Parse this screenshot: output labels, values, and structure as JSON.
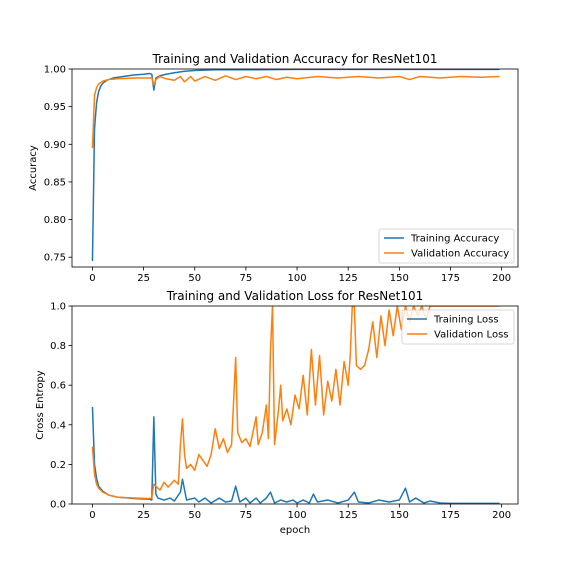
{
  "chart_data": [
    {
      "type": "line",
      "title": "Training and Validation Accuracy for ResNet101",
      "xlabel": "",
      "ylabel": "Accuracy",
      "xlim": [
        -10,
        208
      ],
      "ylim": [
        0.737,
        1.0
      ],
      "xticks": [
        0,
        25,
        50,
        75,
        100,
        125,
        150,
        175,
        200
      ],
      "yticks": [
        0.75,
        0.8,
        0.85,
        0.9,
        0.95,
        1.0
      ],
      "ytick_labels": [
        "0.75",
        "0.80",
        "0.85",
        "0.90",
        "0.95",
        "1.00"
      ],
      "legend": "lower-right",
      "grid": false,
      "series": [
        {
          "name": "Training Accuracy",
          "color": "#1f77b4",
          "points": [
            [
              0,
              0.745
            ],
            [
              1,
              0.92
            ],
            [
              2,
              0.955
            ],
            [
              3,
              0.97
            ],
            [
              4,
              0.977
            ],
            [
              5,
              0.981
            ],
            [
              7,
              0.985
            ],
            [
              10,
              0.988
            ],
            [
              15,
              0.99
            ],
            [
              20,
              0.992
            ],
            [
              25,
              0.993
            ],
            [
              28,
              0.994
            ],
            [
              29,
              0.993
            ],
            [
              30,
              0.972
            ],
            [
              31,
              0.988
            ],
            [
              33,
              0.991
            ],
            [
              36,
              0.993
            ],
            [
              40,
              0.995
            ],
            [
              45,
              0.997
            ],
            [
              50,
              0.998
            ],
            [
              60,
              0.999
            ],
            [
              80,
              0.999
            ],
            [
              100,
              0.9995
            ],
            [
              150,
              0.9995
            ],
            [
              199,
              0.9995
            ]
          ]
        },
        {
          "name": "Validation Accuracy",
          "color": "#ff7f0e",
          "points": [
            [
              0,
              0.895
            ],
            [
              1,
              0.965
            ],
            [
              2,
              0.975
            ],
            [
              3,
              0.98
            ],
            [
              5,
              0.984
            ],
            [
              8,
              0.986
            ],
            [
              12,
              0.987
            ],
            [
              20,
              0.988
            ],
            [
              28,
              0.988
            ],
            [
              29,
              0.988
            ],
            [
              30,
              0.979
            ],
            [
              31,
              0.986
            ],
            [
              33,
              0.99
            ],
            [
              36,
              0.987
            ],
            [
              40,
              0.985
            ],
            [
              43,
              0.99
            ],
            [
              45,
              0.983
            ],
            [
              48,
              0.99
            ],
            [
              50,
              0.984
            ],
            [
              55,
              0.99
            ],
            [
              60,
              0.985
            ],
            [
              65,
              0.991
            ],
            [
              70,
              0.986
            ],
            [
              75,
              0.99
            ],
            [
              80,
              0.987
            ],
            [
              85,
              0.99
            ],
            [
              90,
              0.986
            ],
            [
              95,
              0.989
            ],
            [
              100,
              0.987
            ],
            [
              110,
              0.99
            ],
            [
              120,
              0.988
            ],
            [
              130,
              0.99
            ],
            [
              140,
              0.988
            ],
            [
              150,
              0.99
            ],
            [
              155,
              0.986
            ],
            [
              160,
              0.99
            ],
            [
              170,
              0.988
            ],
            [
              180,
              0.99
            ],
            [
              190,
              0.989
            ],
            [
              199,
              0.99
            ]
          ]
        }
      ]
    },
    {
      "type": "line",
      "title": "Training and Validation Loss for ResNet101",
      "xlabel": "epoch",
      "ylabel": "Cross Entropy",
      "xlim": [
        -10,
        208
      ],
      "ylim": [
        0.0,
        1.0
      ],
      "xticks": [
        0,
        25,
        50,
        75,
        100,
        125,
        150,
        175,
        200
      ],
      "yticks": [
        0.0,
        0.2,
        0.4,
        0.6,
        0.8,
        1.0
      ],
      "ytick_labels": [
        "0.0",
        "0.2",
        "0.4",
        "0.6",
        "0.8",
        "1.0"
      ],
      "legend": "upper-right",
      "grid": false,
      "series": [
        {
          "name": "Training Loss",
          "color": "#1f77b4",
          "points": [
            [
              0,
              0.49
            ],
            [
              1,
              0.2
            ],
            [
              2,
              0.13
            ],
            [
              3,
              0.09
            ],
            [
              5,
              0.065
            ],
            [
              8,
              0.045
            ],
            [
              12,
              0.035
            ],
            [
              20,
              0.028
            ],
            [
              28,
              0.024
            ],
            [
              29,
              0.02
            ],
            [
              30,
              0.44
            ],
            [
              31,
              0.05
            ],
            [
              32,
              0.03
            ],
            [
              35,
              0.02
            ],
            [
              38,
              0.03
            ],
            [
              40,
              0.015
            ],
            [
              43,
              0.06
            ],
            [
              44,
              0.125
            ],
            [
              46,
              0.02
            ],
            [
              50,
              0.03
            ],
            [
              52,
              0.01
            ],
            [
              55,
              0.03
            ],
            [
              58,
              0.005
            ],
            [
              62,
              0.03
            ],
            [
              65,
              0.01
            ],
            [
              68,
              0.015
            ],
            [
              70,
              0.09
            ],
            [
              72,
              0.01
            ],
            [
              75,
              0.03
            ],
            [
              77,
              0.005
            ],
            [
              80,
              0.03
            ],
            [
              82,
              0.005
            ],
            [
              85,
              0.03
            ],
            [
              87,
              0.06
            ],
            [
              89,
              0.005
            ],
            [
              92,
              0.02
            ],
            [
              95,
              0.01
            ],
            [
              98,
              0.02
            ],
            [
              100,
              0.005
            ],
            [
              103,
              0.02
            ],
            [
              106,
              0.005
            ],
            [
              108,
              0.05
            ],
            [
              110,
              0.01
            ],
            [
              115,
              0.02
            ],
            [
              120,
              0.005
            ],
            [
              125,
              0.02
            ],
            [
              128,
              0.06
            ],
            [
              130,
              0.01
            ],
            [
              135,
              0.005
            ],
            [
              140,
              0.02
            ],
            [
              145,
              0.01
            ],
            [
              150,
              0.02
            ],
            [
              153,
              0.08
            ],
            [
              155,
              0.01
            ],
            [
              158,
              0.03
            ],
            [
              162,
              0.005
            ],
            [
              165,
              0.015
            ],
            [
              170,
              0.005
            ],
            [
              175,
              0.003
            ],
            [
              199,
              0.003
            ]
          ]
        },
        {
          "name": "Validation Loss",
          "color": "#ff7f0e",
          "points": [
            [
              0,
              0.29
            ],
            [
              1,
              0.15
            ],
            [
              2,
              0.1
            ],
            [
              3,
              0.08
            ],
            [
              5,
              0.06
            ],
            [
              8,
              0.045
            ],
            [
              12,
              0.035
            ],
            [
              20,
              0.03
            ],
            [
              28,
              0.028
            ],
            [
              29,
              0.03
            ],
            [
              30,
              0.1
            ],
            [
              31,
              0.09
            ],
            [
              33,
              0.07
            ],
            [
              35,
              0.11
            ],
            [
              37,
              0.085
            ],
            [
              40,
              0.12
            ],
            [
              42,
              0.1
            ],
            [
              43,
              0.3
            ],
            [
              44,
              0.43
            ],
            [
              45,
              0.25
            ],
            [
              46,
              0.18
            ],
            [
              48,
              0.2
            ],
            [
              50,
              0.17
            ],
            [
              52,
              0.25
            ],
            [
              54,
              0.22
            ],
            [
              56,
              0.19
            ],
            [
              58,
              0.25
            ],
            [
              60,
              0.38
            ],
            [
              62,
              0.28
            ],
            [
              64,
              0.33
            ],
            [
              66,
              0.26
            ],
            [
              68,
              0.3
            ],
            [
              70,
              0.74
            ],
            [
              71,
              0.36
            ],
            [
              73,
              0.31
            ],
            [
              75,
              0.33
            ],
            [
              77,
              0.29
            ],
            [
              80,
              0.44
            ],
            [
              81,
              0.3
            ],
            [
              83,
              0.36
            ],
            [
              85,
              0.5
            ],
            [
              86,
              0.33
            ],
            [
              87,
              0.77
            ],
            [
              88,
              1.0
            ],
            [
              89,
              0.3
            ],
            [
              91,
              0.48
            ],
            [
              92,
              0.6
            ],
            [
              93,
              0.42
            ],
            [
              95,
              0.48
            ],
            [
              97,
              0.4
            ],
            [
              99,
              0.55
            ],
            [
              101,
              0.48
            ],
            [
              103,
              0.65
            ],
            [
              105,
              0.45
            ],
            [
              107,
              0.78
            ],
            [
              109,
              0.5
            ],
            [
              111,
              0.75
            ],
            [
              113,
              0.45
            ],
            [
              115,
              0.62
            ],
            [
              117,
              0.52
            ],
            [
              119,
              0.68
            ],
            [
              121,
              0.5
            ],
            [
              123,
              0.72
            ],
            [
              125,
              0.6
            ],
            [
              126,
              0.75
            ],
            [
              127,
              1.0
            ],
            [
              128,
              1.0
            ],
            [
              129,
              0.7
            ],
            [
              131,
              0.68
            ],
            [
              133,
              0.7
            ],
            [
              135,
              0.78
            ],
            [
              137,
              0.92
            ],
            [
              139,
              0.74
            ],
            [
              141,
              0.95
            ],
            [
              143,
              0.8
            ],
            [
              145,
              0.98
            ],
            [
              147,
              0.85
            ],
            [
              149,
              1.0
            ],
            [
              151,
              0.88
            ],
            [
              153,
              1.0
            ],
            [
              155,
              0.92
            ],
            [
              157,
              1.0
            ],
            [
              159,
              0.95
            ],
            [
              161,
              1.0
            ],
            [
              163,
              0.93
            ],
            [
              165,
              1.0
            ],
            [
              199,
              1.0
            ]
          ]
        }
      ]
    }
  ]
}
